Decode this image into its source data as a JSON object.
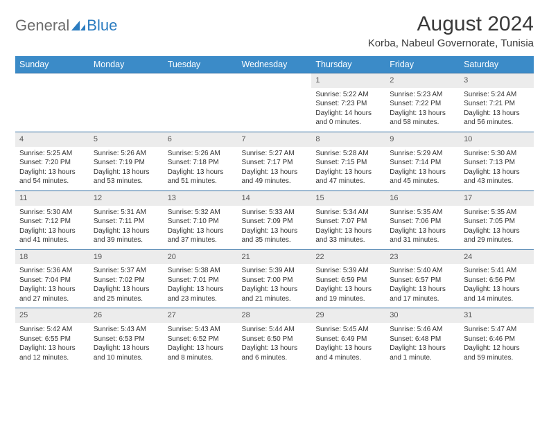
{
  "brand": {
    "part1": "General",
    "part2": "Blue"
  },
  "title": "August 2024",
  "location": "Korba, Nabeul Governorate, Tunisia",
  "colors": {
    "header_bg": "#3b8bc8",
    "header_text": "#ffffff",
    "daynum_bg": "#ececec",
    "rule": "#2b6aa0",
    "text": "#333333",
    "brand_gray": "#6b6b6b",
    "brand_blue": "#2b7cc0"
  },
  "weekdays": [
    "Sunday",
    "Monday",
    "Tuesday",
    "Wednesday",
    "Thursday",
    "Friday",
    "Saturday"
  ],
  "weeks": [
    {
      "nums": [
        "",
        "",
        "",
        "",
        "1",
        "2",
        "3"
      ],
      "info": [
        "",
        "",
        "",
        "",
        "Sunrise: 5:22 AM\nSunset: 7:23 PM\nDaylight: 14 hours and 0 minutes.",
        "Sunrise: 5:23 AM\nSunset: 7:22 PM\nDaylight: 13 hours and 58 minutes.",
        "Sunrise: 5:24 AM\nSunset: 7:21 PM\nDaylight: 13 hours and 56 minutes."
      ]
    },
    {
      "nums": [
        "4",
        "5",
        "6",
        "7",
        "8",
        "9",
        "10"
      ],
      "info": [
        "Sunrise: 5:25 AM\nSunset: 7:20 PM\nDaylight: 13 hours and 54 minutes.",
        "Sunrise: 5:26 AM\nSunset: 7:19 PM\nDaylight: 13 hours and 53 minutes.",
        "Sunrise: 5:26 AM\nSunset: 7:18 PM\nDaylight: 13 hours and 51 minutes.",
        "Sunrise: 5:27 AM\nSunset: 7:17 PM\nDaylight: 13 hours and 49 minutes.",
        "Sunrise: 5:28 AM\nSunset: 7:15 PM\nDaylight: 13 hours and 47 minutes.",
        "Sunrise: 5:29 AM\nSunset: 7:14 PM\nDaylight: 13 hours and 45 minutes.",
        "Sunrise: 5:30 AM\nSunset: 7:13 PM\nDaylight: 13 hours and 43 minutes."
      ]
    },
    {
      "nums": [
        "11",
        "12",
        "13",
        "14",
        "15",
        "16",
        "17"
      ],
      "info": [
        "Sunrise: 5:30 AM\nSunset: 7:12 PM\nDaylight: 13 hours and 41 minutes.",
        "Sunrise: 5:31 AM\nSunset: 7:11 PM\nDaylight: 13 hours and 39 minutes.",
        "Sunrise: 5:32 AM\nSunset: 7:10 PM\nDaylight: 13 hours and 37 minutes.",
        "Sunrise: 5:33 AM\nSunset: 7:09 PM\nDaylight: 13 hours and 35 minutes.",
        "Sunrise: 5:34 AM\nSunset: 7:07 PM\nDaylight: 13 hours and 33 minutes.",
        "Sunrise: 5:35 AM\nSunset: 7:06 PM\nDaylight: 13 hours and 31 minutes.",
        "Sunrise: 5:35 AM\nSunset: 7:05 PM\nDaylight: 13 hours and 29 minutes."
      ]
    },
    {
      "nums": [
        "18",
        "19",
        "20",
        "21",
        "22",
        "23",
        "24"
      ],
      "info": [
        "Sunrise: 5:36 AM\nSunset: 7:04 PM\nDaylight: 13 hours and 27 minutes.",
        "Sunrise: 5:37 AM\nSunset: 7:02 PM\nDaylight: 13 hours and 25 minutes.",
        "Sunrise: 5:38 AM\nSunset: 7:01 PM\nDaylight: 13 hours and 23 minutes.",
        "Sunrise: 5:39 AM\nSunset: 7:00 PM\nDaylight: 13 hours and 21 minutes.",
        "Sunrise: 5:39 AM\nSunset: 6:59 PM\nDaylight: 13 hours and 19 minutes.",
        "Sunrise: 5:40 AM\nSunset: 6:57 PM\nDaylight: 13 hours and 17 minutes.",
        "Sunrise: 5:41 AM\nSunset: 6:56 PM\nDaylight: 13 hours and 14 minutes."
      ]
    },
    {
      "nums": [
        "25",
        "26",
        "27",
        "28",
        "29",
        "30",
        "31"
      ],
      "info": [
        "Sunrise: 5:42 AM\nSunset: 6:55 PM\nDaylight: 13 hours and 12 minutes.",
        "Sunrise: 5:43 AM\nSunset: 6:53 PM\nDaylight: 13 hours and 10 minutes.",
        "Sunrise: 5:43 AM\nSunset: 6:52 PM\nDaylight: 13 hours and 8 minutes.",
        "Sunrise: 5:44 AM\nSunset: 6:50 PM\nDaylight: 13 hours and 6 minutes.",
        "Sunrise: 5:45 AM\nSunset: 6:49 PM\nDaylight: 13 hours and 4 minutes.",
        "Sunrise: 5:46 AM\nSunset: 6:48 PM\nDaylight: 13 hours and 1 minute.",
        "Sunrise: 5:47 AM\nSunset: 6:46 PM\nDaylight: 12 hours and 59 minutes."
      ]
    }
  ]
}
